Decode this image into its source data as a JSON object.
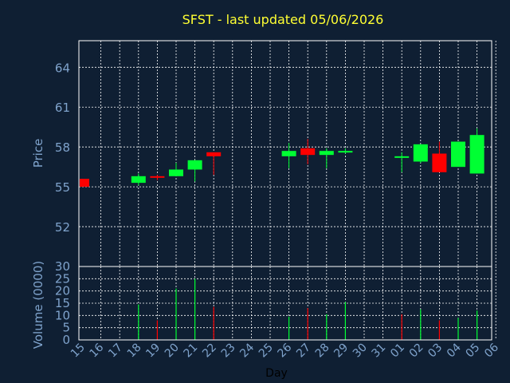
{
  "title": "SFST - last updated 05/06/2026",
  "colors": {
    "background": "#0f1f33",
    "title": "#ffff33",
    "axis_text": "#7fa3cc",
    "day_label": "#000000",
    "frame": "#ffffff",
    "grid": "#ffffff",
    "up": "#00ff33",
    "down": "#ff0000"
  },
  "chart_data": [
    {
      "type": "candlestick",
      "name": "price",
      "ylabel": "Price",
      "ylim": [
        49,
        66
      ],
      "yticks": [
        52,
        55,
        58,
        61,
        64
      ],
      "grid": true,
      "x": [
        "15",
        "16",
        "17",
        "18",
        "19",
        "20",
        "21",
        "22",
        "23",
        "24",
        "25",
        "26",
        "27",
        "28",
        "29",
        "30",
        "31",
        "01",
        "02",
        "03",
        "04",
        "05",
        "06"
      ],
      "candles": [
        {
          "day": "15",
          "open": 55.6,
          "close": 55.0,
          "high": 55.6,
          "low": 55.0
        },
        {
          "day": "18",
          "open": 55.3,
          "close": 55.8,
          "high": 56.0,
          "low": 55.1
        },
        {
          "day": "19",
          "open": 55.8,
          "close": 55.7,
          "high": 55.9,
          "low": 55.5
        },
        {
          "day": "20",
          "open": 55.8,
          "close": 56.3,
          "high": 56.8,
          "low": 55.8
        },
        {
          "day": "21",
          "open": 56.3,
          "close": 57.0,
          "high": 57.0,
          "low": 55.4
        },
        {
          "day": "22",
          "open": 57.6,
          "close": 57.3,
          "high": 57.6,
          "low": 55.9
        },
        {
          "day": "26",
          "open": 57.3,
          "close": 57.7,
          "high": 58.3,
          "low": 56.4
        },
        {
          "day": "27",
          "open": 57.9,
          "close": 57.4,
          "high": 58.6,
          "low": 56.7
        },
        {
          "day": "28",
          "open": 57.4,
          "close": 57.7,
          "high": 57.9,
          "low": 56.4
        },
        {
          "day": "29",
          "open": 57.6,
          "close": 57.7,
          "high": 57.9,
          "low": 57.5
        },
        {
          "day": "01",
          "open": 57.3,
          "close": 57.3,
          "high": 57.6,
          "low": 56.1
        },
        {
          "day": "02",
          "open": 56.9,
          "close": 58.2,
          "high": 58.2,
          "low": 56.8
        },
        {
          "day": "03",
          "open": 57.5,
          "close": 56.1,
          "high": 58.4,
          "low": 56.1
        },
        {
          "day": "04",
          "open": 56.5,
          "close": 58.4,
          "high": 58.4,
          "low": 56.5
        },
        {
          "day": "05",
          "open": 56.0,
          "close": 58.9,
          "high": 59.4,
          "low": 56.0
        }
      ]
    },
    {
      "type": "bar",
      "name": "volume",
      "ylabel": "Volume (0000)",
      "xlabel": "Day",
      "ylim": [
        0,
        30
      ],
      "yticks": [
        0,
        5,
        10,
        15,
        20,
        25,
        30
      ],
      "grid": true,
      "x": [
        "15",
        "16",
        "17",
        "18",
        "19",
        "20",
        "21",
        "22",
        "23",
        "24",
        "25",
        "26",
        "27",
        "28",
        "29",
        "30",
        "31",
        "01",
        "02",
        "03",
        "04",
        "05",
        "06"
      ],
      "bars": [
        {
          "day": "18",
          "value": 14.5,
          "dir": "up"
        },
        {
          "day": "19",
          "value": 8,
          "dir": "down"
        },
        {
          "day": "20",
          "value": 21,
          "dir": "up"
        },
        {
          "day": "21",
          "value": 25,
          "dir": "up"
        },
        {
          "day": "22",
          "value": 13.5,
          "dir": "down"
        },
        {
          "day": "26",
          "value": 9.5,
          "dir": "up"
        },
        {
          "day": "27",
          "value": 13,
          "dir": "down"
        },
        {
          "day": "28",
          "value": 10.5,
          "dir": "up"
        },
        {
          "day": "29",
          "value": 15.5,
          "dir": "up"
        },
        {
          "day": "01",
          "value": 10.5,
          "dir": "down"
        },
        {
          "day": "02",
          "value": 12.5,
          "dir": "up"
        },
        {
          "day": "03",
          "value": 8,
          "dir": "down"
        },
        {
          "day": "04",
          "value": 9,
          "dir": "up"
        },
        {
          "day": "05",
          "value": 12,
          "dir": "up"
        }
      ]
    }
  ]
}
